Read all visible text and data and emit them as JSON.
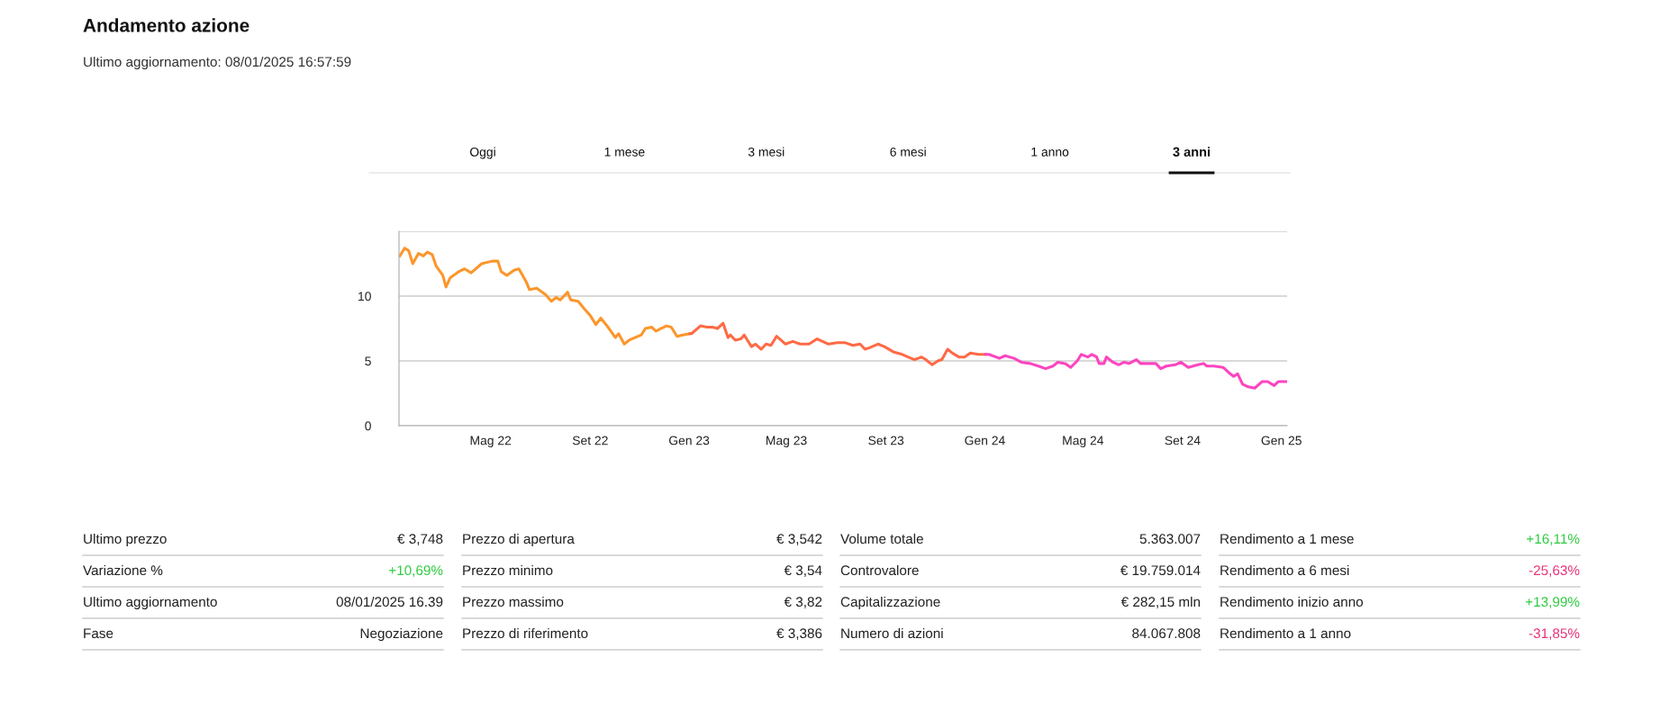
{
  "chart_data": [
    {
      "type": "other",
      "title": "Andamento azione",
      "subtitle": "Ultimo aggiornamento: 08/01/2025 16:57:59",
      "annotations": [
        "Oggi",
        "1 mese",
        "3 mesi",
        "6 mesi",
        "1 anno",
        "3 anni"
      ]
    },
    {
      "type": "line",
      "xlim": [
        "2022-01-08",
        "2025-01-08"
      ],
      "ylim": [
        0,
        15
      ],
      "xticks": [
        {
          "value": "2022-05-01",
          "label": "Mag 22"
        },
        {
          "value": "2022-09-01",
          "label": "Set 22"
        },
        {
          "value": "2023-01-01",
          "label": "Gen 23"
        },
        {
          "value": "2023-05-01",
          "label": "Mag 23"
        },
        {
          "value": "2023-09-01",
          "label": "Set 23"
        },
        {
          "value": "2024-01-01",
          "label": "Gen 24"
        },
        {
          "value": "2024-05-01",
          "label": "Mag 24"
        },
        {
          "value": "2024-09-01",
          "label": "Set 24"
        },
        {
          "value": "2025-01-01",
          "label": "Gen 25"
        }
      ],
      "yticks": [
        0,
        5,
        10,
        {
          "value": 15,
          "label": null
        }
      ],
      "grid": "y",
      "marker": "none",
      "line_style": "solid",
      "series": [
        {
          "color": "#fb962c",
          "x": [
            "2022-01-09",
            "2022-01-15",
            "2022-01-20",
            "2022-01-25",
            "2022-02-01",
            "2022-02-07",
            "2022-02-12",
            "2022-02-18",
            "2022-02-23",
            "2022-03-03",
            "2022-03-07",
            "2022-03-12",
            "2022-03-23",
            "2022-03-30",
            "2022-04-07",
            "2022-04-20",
            "2022-05-03",
            "2022-05-10",
            "2022-05-14",
            "2022-05-21",
            "2022-05-30",
            "2022-06-05",
            "2022-06-14",
            "2022-06-18",
            "2022-06-27",
            "2022-07-08",
            "2022-07-15",
            "2022-07-21",
            "2022-07-26",
            "2022-08-04",
            "2022-08-08",
            "2022-08-17",
            "2022-08-25",
            "2022-09-01",
            "2022-09-08",
            "2022-09-14",
            "2022-09-23",
            "2022-10-02",
            "2022-10-06",
            "2022-10-13",
            "2022-10-19",
            "2022-11-03",
            "2022-11-08",
            "2022-11-16",
            "2022-11-21",
            "2022-12-04",
            "2022-12-10",
            "2022-12-17",
            "2022-12-24",
            "2023-01-02"
          ],
          "values": [
            13.1,
            13.7,
            13.5,
            12.5,
            13.3,
            13.1,
            13.4,
            13.2,
            12.3,
            11.6,
            10.7,
            11.4,
            11.9,
            12.1,
            11.8,
            12.5,
            12.7,
            12.7,
            11.9,
            11.6,
            12.0,
            12.1,
            11.1,
            10.5,
            10.6,
            10.1,
            9.6,
            9.9,
            9.7,
            10.3,
            9.7,
            9.6,
            9.0,
            8.5,
            7.8,
            8.3,
            7.6,
            6.8,
            7.1,
            6.3,
            6.6,
            7.0,
            7.5,
            7.6,
            7.3,
            7.7,
            7.6,
            6.9,
            7.0,
            7.1
          ]
        },
        {
          "color": "#ff6a45",
          "x": [
            "2023-01-02",
            "2023-01-04",
            "2023-01-15",
            "2023-01-23",
            "2023-01-30",
            "2023-02-05",
            "2023-02-12",
            "2023-02-18",
            "2023-02-21",
            "2023-02-27",
            "2023-03-06",
            "2023-03-10",
            "2023-03-19",
            "2023-03-24",
            "2023-03-31",
            "2023-04-06",
            "2023-04-12",
            "2023-04-19",
            "2023-04-30",
            "2023-05-09",
            "2023-05-18",
            "2023-05-29",
            "2023-06-08",
            "2023-06-22",
            "2023-07-03",
            "2023-07-13",
            "2023-07-22",
            "2023-07-31",
            "2023-08-06",
            "2023-08-11",
            "2023-08-22",
            "2023-08-30",
            "2023-09-10",
            "2023-09-21",
            "2023-10-06",
            "2023-10-15",
            "2023-10-20",
            "2023-10-28",
            "2023-11-04",
            "2023-11-09",
            "2023-11-16",
            "2023-11-22",
            "2023-11-30",
            "2023-12-07",
            "2023-12-14",
            "2023-12-24",
            "2024-01-02"
          ],
          "values": [
            7.1,
            7.1,
            7.7,
            7.6,
            7.6,
            7.5,
            7.9,
            6.8,
            7.0,
            6.6,
            6.7,
            7.0,
            6.1,
            6.3,
            5.9,
            6.3,
            6.2,
            6.9,
            6.3,
            6.5,
            6.3,
            6.3,
            6.7,
            6.3,
            6.4,
            6.4,
            6.2,
            6.3,
            5.9,
            6.0,
            6.3,
            6.1,
            5.7,
            5.5,
            5.1,
            5.3,
            5.1,
            4.7,
            5.0,
            5.1,
            5.9,
            5.6,
            5.3,
            5.3,
            5.6,
            5.5,
            5.5
          ]
        },
        {
          "color": "#fb45c0",
          "x": [
            "2024-01-02",
            "2024-01-06",
            "2024-01-19",
            "2024-01-26",
            "2024-02-06",
            "2024-02-15",
            "2024-02-26",
            "2024-03-07",
            "2024-03-16",
            "2024-03-25",
            "2024-03-31",
            "2024-04-09",
            "2024-04-16",
            "2024-04-24",
            "2024-04-29",
            "2024-05-07",
            "2024-05-12",
            "2024-05-18",
            "2024-05-21",
            "2024-05-27",
            "2024-05-30",
            "2024-06-07",
            "2024-06-14",
            "2024-06-21",
            "2024-06-27",
            "2024-07-06",
            "2024-07-11",
            "2024-07-21",
            "2024-07-30",
            "2024-08-05",
            "2024-08-12",
            "2024-08-23",
            "2024-08-30",
            "2024-09-08",
            "2024-09-20",
            "2024-09-27",
            "2024-10-01",
            "2024-10-10",
            "2024-10-21",
            "2024-10-28",
            "2024-11-03",
            "2024-11-08",
            "2024-11-14",
            "2024-11-21",
            "2024-11-29",
            "2024-12-08",
            "2024-12-15",
            "2024-12-23",
            "2024-12-28",
            "2025-01-08"
          ],
          "values": [
            5.5,
            5.5,
            5.2,
            5.4,
            5.2,
            4.9,
            4.8,
            4.6,
            4.4,
            4.6,
            4.9,
            4.8,
            4.5,
            5.0,
            5.5,
            5.3,
            5.5,
            5.3,
            4.8,
            4.8,
            5.3,
            4.9,
            4.7,
            4.9,
            4.8,
            5.1,
            4.8,
            4.8,
            4.8,
            4.4,
            4.6,
            4.7,
            4.9,
            4.5,
            4.7,
            4.8,
            4.6,
            4.6,
            4.5,
            4.1,
            3.8,
            4.0,
            3.2,
            3.0,
            2.9,
            3.4,
            3.4,
            3.1,
            3.4,
            3.4
          ]
        }
      ]
    },
    {
      "type": "other",
      "annotations": [
        "Ultimo prezzo",
        "€ 3,748",
        "Variazione %",
        "+10,69%",
        "Ultimo aggiornamento",
        "08/01/2025 16.39",
        "Fase",
        "Negoziazione",
        "Prezzo di apertura",
        "€ 3,542",
        "Prezzo minimo",
        "€ 3,54",
        "Prezzo massimo",
        "€ 3,82",
        "Prezzo di riferimento",
        "€ 3,386",
        "Volume totale",
        "5.363.007",
        "Controvalore",
        "€ 19.759.014",
        "Capitalizzazione",
        "€ 282,15 mln",
        "Numero di azioni",
        "84.067.808",
        "Rendimento a 1 mese",
        "+16,11%",
        "Rendimento a 6 mesi",
        "-25,63%",
        "Rendimento inizio anno",
        "+13,99%",
        "Rendimento a 1 anno",
        "-31,85%"
      ],
      "colors": [
        "#222222",
        "#222222",
        "#222222",
        "#2ecc40",
        "#222222",
        "#222222",
        "#222222",
        "#222222",
        "#222222",
        "#222222",
        "#222222",
        "#222222",
        "#222222",
        "#222222",
        "#222222",
        "#222222",
        "#222222",
        "#222222",
        "#222222",
        "#222222",
        "#222222",
        "#222222",
        "#222222",
        "#222222",
        "#222222",
        "#2ecc40",
        "#222222",
        "#e8337a",
        "#222222",
        "#2ecc40",
        "#222222",
        "#e8337a"
      ]
    }
  ]
}
